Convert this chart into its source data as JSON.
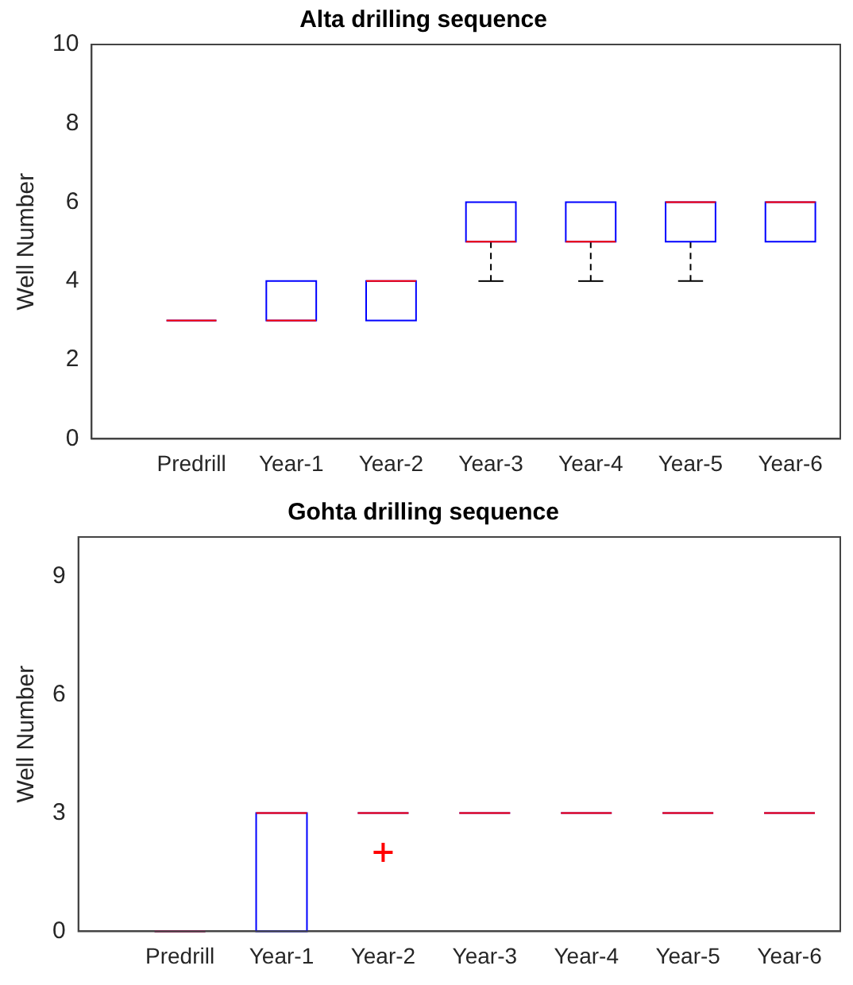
{
  "chart_data": [
    {
      "type": "box",
      "title": "Alta drilling sequence",
      "ylabel": "Well Number",
      "color": "#0000ff",
      "categories": [
        "Predrill",
        "Year-1",
        "Year-2",
        "Year-3",
        "Year-4",
        "Year-5",
        "Year-6"
      ],
      "ylim": [
        0,
        10
      ],
      "yticks": [
        0,
        2,
        4,
        6,
        8,
        10
      ],
      "grid": false,
      "boxes": [
        {
          "low": 3,
          "q1": 3,
          "median": 3,
          "q3": 3,
          "high": 3
        },
        {
          "low": 3,
          "q1": 3,
          "median": 3,
          "q3": 4,
          "high": 4
        },
        {
          "low": 3,
          "q1": 3,
          "median": 4,
          "q3": 4,
          "high": 4
        },
        {
          "low": 4,
          "q1": 5,
          "median": 5,
          "q3": 6,
          "high": 6
        },
        {
          "low": 4,
          "q1": 5,
          "median": 5,
          "q3": 6,
          "high": 6
        },
        {
          "low": 4,
          "q1": 5,
          "median": 6,
          "q3": 6,
          "high": 6
        },
        {
          "low": 5,
          "q1": 5,
          "median": 6,
          "q3": 6,
          "high": 6
        }
      ]
    },
    {
      "type": "box",
      "title": "Gohta drilling sequence",
      "ylabel": "Well Number",
      "color": "#0000ff",
      "categories": [
        "Predrill",
        "Year-1",
        "Year-2",
        "Year-3",
        "Year-4",
        "Year-5",
        "Year-6"
      ],
      "ylim": [
        0,
        10
      ],
      "yticks": [
        0,
        3,
        6,
        9
      ],
      "grid": false,
      "boxes": [
        {
          "low": 0,
          "q1": 0,
          "median": 0,
          "q3": 0,
          "high": 0
        },
        {
          "low": 0,
          "q1": 0,
          "median": 3,
          "q3": 3,
          "high": 3
        },
        {
          "low": 3,
          "q1": 3,
          "median": 3,
          "q3": 3,
          "high": 3,
          "outliers": [
            2
          ]
        },
        {
          "low": 3,
          "q1": 3,
          "median": 3,
          "q3": 3,
          "high": 3
        },
        {
          "low": 3,
          "q1": 3,
          "median": 3,
          "q3": 3,
          "high": 3
        },
        {
          "low": 3,
          "q1": 3,
          "median": 3,
          "q3": 3,
          "high": 3
        },
        {
          "low": 3,
          "q1": 3,
          "median": 3,
          "q3": 3,
          "high": 3
        }
      ]
    }
  ]
}
